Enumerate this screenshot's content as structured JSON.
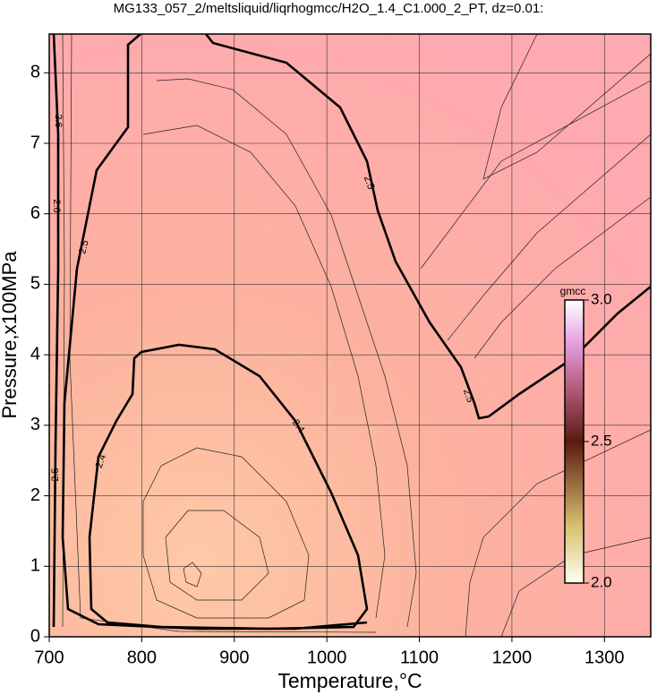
{
  "chart_data": {
    "type": "contour",
    "title": "MG133_057_2/meltsliquid/liqrhogmcc/H2O_1.4_C1.000_2_PT, dz=0.01:",
    "x_label": "Temperature,°C",
    "y_label": "Pressure,x100MPa",
    "xlim": [
      700,
      1350
    ],
    "xticks": [
      700,
      800,
      900,
      1000,
      1100,
      1200,
      1300
    ],
    "ylim": [
      0,
      8.55
    ],
    "yticks": [
      0,
      1,
      2,
      3,
      4,
      5,
      6,
      7,
      8
    ],
    "grid": true,
    "contour_labels": [
      2.6,
      2.6,
      2.5,
      2.5,
      2.5,
      2.4,
      2.4,
      2.5
    ],
    "colorbar": {
      "label": "gmcc",
      "lim": [
        2.0,
        3.0
      ],
      "ticks": [
        {
          "value": 2.0,
          "label": "2.0"
        },
        {
          "value": 2.5,
          "label": "2.5"
        },
        {
          "value": 3.0,
          "label": "3.0"
        }
      ]
    }
  }
}
